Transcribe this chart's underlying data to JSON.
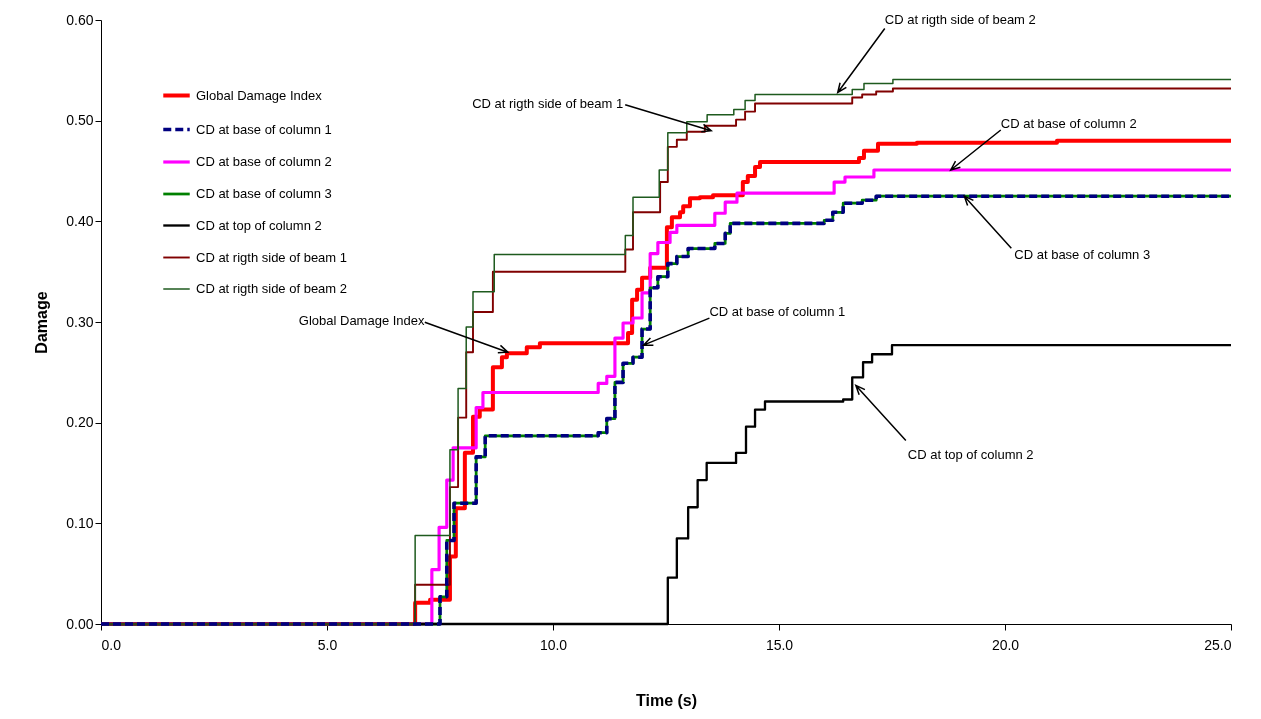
{
  "chart_data": {
    "type": "step",
    "xlabel": "Time (s)",
    "ylabel": "Damage",
    "xlim": [
      0,
      25
    ],
    "ylim": [
      0,
      0.6
    ],
    "xticks": [
      {
        "value": 0,
        "label": "0.0"
      },
      {
        "value": 5,
        "label": "5.0"
      },
      {
        "value": 10,
        "label": "10.0"
      },
      {
        "value": 15,
        "label": "15.0"
      },
      {
        "value": 20,
        "label": "20.0"
      },
      {
        "value": 25,
        "label": "25.0"
      }
    ],
    "yticks": [
      {
        "value": 0,
        "label": "0.00"
      },
      {
        "value": 0.1,
        "label": "0.10"
      },
      {
        "value": 0.2,
        "label": "0.20"
      },
      {
        "value": 0.3,
        "label": "0.30"
      },
      {
        "value": 0.4,
        "label": "0.40"
      },
      {
        "value": 0.5,
        "label": "0.50"
      },
      {
        "value": 0.6,
        "label": "0.60"
      }
    ],
    "grid": false,
    "legend": "top left",
    "series": [
      {
        "name": "Global Damage Index",
        "color": "#ff0000",
        "line_style": "solid",
        "x": [
          0,
          6.95,
          7.28,
          7.72,
          7.85,
          8.05,
          8.23,
          8.38,
          8.67,
          8.87,
          8.98,
          9.42,
          9.71,
          11.66,
          11.75,
          11.86,
          11.97,
          12.15,
          12.52,
          12.63,
          12.81,
          12.88,
          13.03,
          13.25,
          13.54,
          14.2,
          14.31,
          14.47,
          14.58,
          16.77,
          16.88,
          17.19,
          18.05,
          21.15,
          25
        ],
        "values": [
          0,
          0.021,
          0.024,
          0.067,
          0.115,
          0.17,
          0.206,
          0.213,
          0.255,
          0.265,
          0.269,
          0.275,
          0.279,
          0.289,
          0.322,
          0.332,
          0.344,
          0.354,
          0.394,
          0.404,
          0.409,
          0.415,
          0.423,
          0.424,
          0.426,
          0.439,
          0.445,
          0.454,
          0.459,
          0.463,
          0.47,
          0.477,
          0.478,
          0.48,
          0.48
        ]
      },
      {
        "name": "CD at base of column 1",
        "color": "#000080",
        "line_style": "dashed",
        "x": [
          0,
          7.5,
          7.65,
          7.81,
          8.3,
          8.5,
          11.0,
          11.19,
          11.37,
          11.55,
          11.77,
          11.97,
          12.15,
          12.32,
          12.54,
          12.74,
          12.99,
          13.58,
          13.81,
          13.92,
          16.0,
          16.19,
          16.42,
          16.84,
          17.15,
          25
        ],
        "values": [
          0,
          0.027,
          0.083,
          0.12,
          0.166,
          0.187,
          0.19,
          0.204,
          0.24,
          0.259,
          0.265,
          0.293,
          0.334,
          0.345,
          0.358,
          0.365,
          0.373,
          0.378,
          0.388,
          0.398,
          0.401,
          0.409,
          0.418,
          0.421,
          0.425,
          0.425
        ]
      },
      {
        "name": "CD at base of column 2",
        "color": "#ff00ff",
        "line_style": "solid",
        "x": [
          0,
          7.32,
          7.48,
          7.65,
          7.79,
          8.3,
          8.45,
          11.0,
          11.19,
          11.37,
          11.55,
          11.77,
          11.97,
          12.15,
          12.32,
          12.59,
          12.74,
          13.58,
          13.81,
          14.07,
          16.0,
          16.22,
          16.46,
          17.1,
          25
        ],
        "values": [
          0,
          0.054,
          0.096,
          0.143,
          0.175,
          0.215,
          0.23,
          0.239,
          0.246,
          0.284,
          0.299,
          0.304,
          0.329,
          0.368,
          0.379,
          0.389,
          0.396,
          0.408,
          0.419,
          0.428,
          0.428,
          0.439,
          0.444,
          0.451,
          0.451
        ]
      },
      {
        "name": "CD at base of column 3",
        "color": "#008000",
        "line_style": "solid",
        "x": [
          0,
          7.5,
          7.65,
          7.81,
          8.3,
          8.5,
          11.0,
          11.19,
          11.37,
          11.55,
          11.77,
          11.97,
          12.15,
          12.32,
          12.54,
          12.74,
          12.99,
          13.58,
          13.81,
          13.92,
          16.0,
          16.19,
          16.42,
          16.84,
          17.15,
          25
        ],
        "values": [
          0,
          0.027,
          0.083,
          0.12,
          0.166,
          0.187,
          0.19,
          0.204,
          0.24,
          0.259,
          0.265,
          0.293,
          0.334,
          0.345,
          0.358,
          0.365,
          0.373,
          0.378,
          0.388,
          0.398,
          0.401,
          0.409,
          0.418,
          0.421,
          0.425,
          0.425
        ]
      },
      {
        "name": "CD at top of column 2",
        "color": "#000000",
        "line_style": "solid",
        "x": [
          0,
          12.54,
          12.74,
          12.99,
          13.2,
          13.4,
          14.05,
          14.27,
          14.47,
          14.69,
          16.42,
          16.62,
          16.86,
          17.06,
          17.5,
          25
        ],
        "values": [
          0,
          0.046,
          0.085,
          0.116,
          0.143,
          0.16,
          0.17,
          0.196,
          0.213,
          0.221,
          0.223,
          0.245,
          0.26,
          0.268,
          0.277,
          0.277
        ]
      },
      {
        "name": "CD at rigth side of beam 1",
        "color": "#800000",
        "line_style": "solid",
        "x": [
          0,
          6.95,
          7.72,
          7.9,
          8.08,
          8.23,
          8.67,
          11.6,
          11.77,
          12.37,
          12.54,
          12.74,
          12.96,
          13.36,
          14.05,
          14.25,
          14.47,
          16.62,
          16.84,
          17.15,
          17.52,
          25
        ],
        "values": [
          0,
          0.039,
          0.136,
          0.205,
          0.27,
          0.31,
          0.35,
          0.372,
          0.409,
          0.439,
          0.474,
          0.481,
          0.489,
          0.495,
          0.501,
          0.509,
          0.517,
          0.523,
          0.526,
          0.529,
          0.532,
          0.532
        ]
      },
      {
        "name": "CD at rigth side of beam 2",
        "color": "#1e5a1e",
        "line_style": "solid",
        "x": [
          0,
          6.95,
          7.72,
          7.9,
          8.08,
          8.23,
          8.7,
          11.6,
          11.77,
          12.35,
          12.54,
          12.96,
          13.41,
          14.0,
          14.25,
          14.47,
          16.62,
          16.88,
          17.52,
          25
        ],
        "values": [
          0,
          0.088,
          0.173,
          0.234,
          0.295,
          0.33,
          0.367,
          0.386,
          0.424,
          0.451,
          0.488,
          0.499,
          0.506,
          0.511,
          0.52,
          0.526,
          0.531,
          0.537,
          0.541,
          0.541
        ]
      }
    ],
    "annotations": [
      {
        "text": "CD at rigth side of beam 2",
        "x": 16.3,
        "y": 0.528
      },
      {
        "text": "CD at rigth side of beam 1",
        "x": 13.5,
        "y": 0.49
      },
      {
        "text": "CD at base of column 2",
        "x": 18.8,
        "y": 0.451
      },
      {
        "text": "CD at base of column 3",
        "x": 19.1,
        "y": 0.425
      },
      {
        "text": "Global Damage Index",
        "x": 9.0,
        "y": 0.27
      },
      {
        "text": "CD at base of column 1",
        "x": 12.0,
        "y": 0.277
      },
      {
        "text": "CD at top of column 2",
        "x": 16.7,
        "y": 0.237
      }
    ]
  }
}
